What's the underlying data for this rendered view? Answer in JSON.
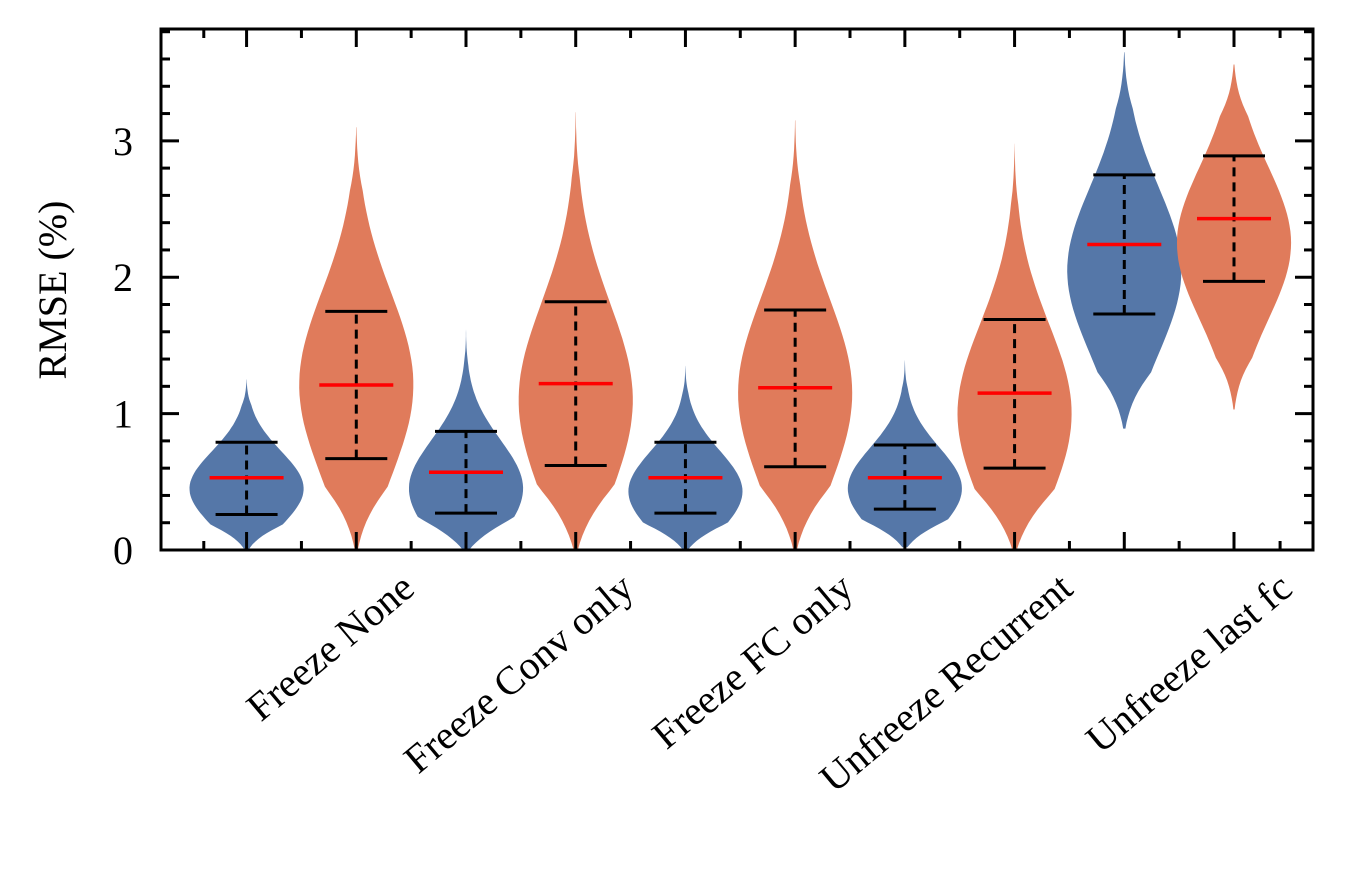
{
  "chart_data": {
    "type": "violin",
    "ylabel": "RMSE (%)",
    "ylim": [
      0,
      3.82
    ],
    "yticks": [
      0,
      1,
      2,
      3
    ],
    "grid": false,
    "categories": [
      "Freeze None",
      "Freeze Conv only",
      "Freeze FC only",
      "Unfreeze Recurrent",
      "Unfreeze last fc"
    ],
    "series": [
      {
        "color": "#5577a8",
        "violins": [
          {
            "min": 0.0,
            "max": 1.25,
            "whisker_low": 0.26,
            "median": 0.53,
            "whisker_high": 0.79,
            "mode": 0.45
          },
          {
            "min": 0.0,
            "max": 1.62,
            "whisker_low": 0.27,
            "median": 0.57,
            "whisker_high": 0.87,
            "mode": 0.45
          },
          {
            "min": 0.0,
            "max": 1.35,
            "whisker_low": 0.27,
            "median": 0.53,
            "whisker_high": 0.79,
            "mode": 0.43
          },
          {
            "min": 0.02,
            "max": 1.39,
            "whisker_low": 0.3,
            "median": 0.53,
            "whisker_high": 0.77,
            "mode": 0.45
          },
          {
            "min": 0.89,
            "max": 3.65,
            "whisker_low": 1.73,
            "median": 2.24,
            "whisker_high": 2.75,
            "mode": 2.05
          }
        ]
      },
      {
        "color": "#e07b5b",
        "violins": [
          {
            "min": 0.0,
            "max": 3.1,
            "whisker_low": 0.67,
            "median": 1.21,
            "whisker_high": 1.75,
            "mode": 1.21
          },
          {
            "min": 0.0,
            "max": 3.21,
            "whisker_low": 0.62,
            "median": 1.22,
            "whisker_high": 1.82,
            "mode": 1.1
          },
          {
            "min": 0.0,
            "max": 3.15,
            "whisker_low": 0.61,
            "median": 1.19,
            "whisker_high": 1.76,
            "mode": 1.15
          },
          {
            "min": 0.0,
            "max": 2.98,
            "whisker_low": 0.6,
            "median": 1.15,
            "whisker_high": 1.69,
            "mode": 1.0
          },
          {
            "min": 1.03,
            "max": 3.56,
            "whisker_low": 1.97,
            "median": 2.43,
            "whisker_high": 2.89,
            "mode": 2.25
          }
        ]
      }
    ],
    "median_color": "#ff0000",
    "whisker_color": "#000000"
  }
}
